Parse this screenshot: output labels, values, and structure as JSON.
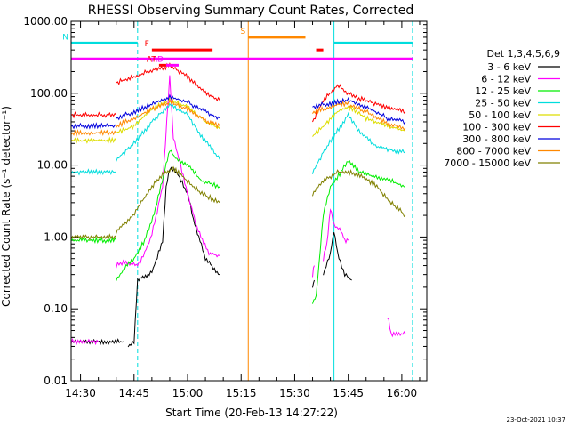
{
  "chart_data": {
    "type": "line",
    "title": "RHESSI Observing Summary Count Rates, Corrected",
    "xlabel": "Start Time (20-Feb-13 14:27:22)",
    "ylabel": "Corrected Count Rate (s⁻¹ detector⁻¹)",
    "ylog": true,
    "ylim": [
      0.01,
      1000
    ],
    "xlim": [
      "14:27:22",
      "16:07:00"
    ],
    "x_ticks": [
      "14:30",
      "14:45",
      "15:00",
      "15:15",
      "15:30",
      "15:45",
      "16:00"
    ],
    "y_ticks": [
      "0.01",
      "0.10",
      "1.00",
      "10.00",
      "100.00",
      "1000.00"
    ],
    "legend_title": "Det 1,3,4,5,6,9",
    "legend_position": "right",
    "footer": "23-Oct-2021 10:37",
    "series": [
      {
        "name": "3 - 6 keV",
        "color": "#000000",
        "segments": [
          [
            [
              "14:27:22",
              0.035
            ],
            [
              "14:42:00",
              0.035
            ]
          ],
          [
            [
              "14:43:20",
              0.03
            ],
            [
              "14:45:00",
              0.035
            ],
            [
              "14:46:00",
              0.25
            ],
            [
              "14:50:00",
              0.32
            ],
            [
              "14:53:00",
              0.9
            ],
            [
              "14:54:00",
              5
            ],
            [
              "14:55:00",
              9
            ],
            [
              "14:57:00",
              8
            ],
            [
              "15:00:00",
              4
            ],
            [
              "15:02:00",
              1.5
            ],
            [
              "15:05:00",
              0.5
            ],
            [
              "15:09:00",
              0.3
            ]
          ],
          [
            [
              "15:35:00",
              0.2
            ],
            [
              "15:35:30",
              0.25
            ]
          ],
          [
            [
              "15:38:00",
              0.3
            ],
            [
              "15:40:00",
              0.6
            ],
            [
              "15:41:00",
              1.2
            ],
            [
              "15:42:00",
              0.6
            ],
            [
              "15:44:00",
              0.3
            ],
            [
              "15:46:00",
              0.25
            ]
          ]
        ]
      },
      {
        "name": "6 - 12 keV",
        "color": "#ff00ff",
        "segments": [
          [
            [
              "14:27:22",
              0.035
            ],
            [
              "14:35:00",
              0.035
            ]
          ],
          [
            [
              "14:40:00",
              0.4
            ],
            [
              "14:42:00",
              0.45
            ],
            [
              "14:46:00",
              0.4
            ],
            [
              "14:48:00",
              0.6
            ],
            [
              "14:50:00",
              1.1
            ],
            [
              "14:53:00",
              5
            ],
            [
              "14:55:00",
              170
            ],
            [
              "14:56:00",
              25
            ],
            [
              "14:58:00",
              10
            ],
            [
              "15:00:00",
              4
            ],
            [
              "15:03:00",
              1.2
            ],
            [
              "15:06:00",
              0.6
            ],
            [
              "15:09:00",
              0.55
            ]
          ],
          [
            [
              "15:35:00",
              0.3
            ],
            [
              "15:35:30",
              0.4
            ]
          ],
          [
            [
              "15:38:00",
              0.5
            ],
            [
              "15:39:00",
              0.8
            ],
            [
              "15:40:00",
              2.5
            ],
            [
              "15:41:00",
              1.5
            ],
            [
              "15:43:00",
              1.2
            ],
            [
              "15:44:00",
              0.9
            ],
            [
              "15:45:00",
              0.9
            ]
          ],
          [
            [
              "15:56:00",
              0.08
            ],
            [
              "15:57:00",
              0.045
            ],
            [
              "16:01:00",
              0.045
            ]
          ]
        ]
      },
      {
        "name": "12 - 25 keV",
        "color": "#00ee00",
        "segments": [
          [
            [
              "14:27:22",
              0.9
            ],
            [
              "14:40:00",
              0.9
            ]
          ],
          [
            [
              "14:40:00",
              0.25
            ],
            [
              "14:42:00",
              0.35
            ],
            [
              "14:45:00",
              0.5
            ],
            [
              "14:48:00",
              0.9
            ],
            [
              "14:51:00",
              2.5
            ],
            [
              "14:54:00",
              10
            ],
            [
              "14:55:00",
              16
            ],
            [
              "14:57:00",
              12
            ],
            [
              "15:00:00",
              10
            ],
            [
              "15:04:00",
              6
            ],
            [
              "15:09:00",
              5
            ]
          ],
          [
            [
              "15:35:00",
              0.12
            ],
            [
              "15:36:00",
              0.15
            ],
            [
              "15:38:00",
              2
            ],
            [
              "15:40:00",
              5
            ],
            [
              "15:43:00",
              8
            ],
            [
              "15:45:00",
              12
            ],
            [
              "15:48:00",
              8
            ],
            [
              "15:52:00",
              7
            ],
            [
              "15:57:00",
              6
            ],
            [
              "16:01:00",
              5
            ]
          ]
        ]
      },
      {
        "name": "25 - 50 keV",
        "color": "#00dddd",
        "segments": [
          [
            [
              "14:27:22",
              8
            ],
            [
              "14:40:00",
              8
            ]
          ],
          [
            [
              "14:40:00",
              12
            ],
            [
              "14:45:00",
              20
            ],
            [
              "14:50:00",
              40
            ],
            [
              "14:55:00",
              70
            ],
            [
              "15:00:00",
              50
            ],
            [
              "15:04:00",
              25
            ],
            [
              "15:09:00",
              12
            ]
          ],
          [
            [
              "15:35:00",
              8
            ],
            [
              "15:38:00",
              15
            ],
            [
              "15:42:00",
              30
            ],
            [
              "15:45:00",
              50
            ],
            [
              "15:48:00",
              30
            ],
            [
              "15:53:00",
              18
            ],
            [
              "16:01:00",
              15
            ]
          ]
        ]
      },
      {
        "name": "50 - 100 keV",
        "color": "#dddd00",
        "segments": [
          [
            [
              "14:27:22",
              22
            ],
            [
              "14:40:00",
              22
            ]
          ],
          [
            [
              "14:40:00",
              28
            ],
            [
              "14:45:00",
              35
            ],
            [
              "14:50:00",
              60
            ],
            [
              "14:55:00",
              80
            ],
            [
              "15:00:00",
              65
            ],
            [
              "15:05:00",
              40
            ],
            [
              "15:09:00",
              32
            ]
          ],
          [
            [
              "15:35:00",
              25
            ],
            [
              "15:38:00",
              35
            ],
            [
              "15:42:00",
              55
            ],
            [
              "15:45:00",
              65
            ],
            [
              "15:50:00",
              45
            ],
            [
              "15:56:00",
              35
            ],
            [
              "16:01:00",
              30
            ]
          ]
        ]
      },
      {
        "name": "100 - 300 keV",
        "color": "#ff0000",
        "segments": [
          [
            [
              "14:27:22",
              50
            ],
            [
              "14:40:00",
              50
            ]
          ],
          [
            [
              "14:40:00",
              140
            ],
            [
              "14:45:00",
              170
            ],
            [
              "14:50:00",
              210
            ],
            [
              "14:55:00",
              240
            ],
            [
              "15:00:00",
              170
            ],
            [
              "15:05:00",
              100
            ],
            [
              "15:09:00",
              80
            ]
          ],
          [
            [
              "15:35:00",
              40
            ],
            [
              "15:38:00",
              80
            ],
            [
              "15:42:00",
              130
            ],
            [
              "15:45:00",
              100
            ],
            [
              "15:48:00",
              85
            ],
            [
              "15:53:00",
              70
            ],
            [
              "16:01:00",
              55
            ]
          ]
        ]
      },
      {
        "name": "300 - 800 keV",
        "color": "#0000dd",
        "segments": [
          [
            [
              "14:27:22",
              35
            ],
            [
              "14:40:00",
              35
            ]
          ],
          [
            [
              "14:40:00",
              45
            ],
            [
              "14:45:00",
              55
            ],
            [
              "14:50:00",
              70
            ],
            [
              "14:55:00",
              90
            ],
            [
              "15:00:00",
              75
            ],
            [
              "15:05:00",
              55
            ],
            [
              "15:09:00",
              45
            ]
          ],
          [
            [
              "15:35:00",
              65
            ],
            [
              "15:38:00",
              70
            ],
            [
              "15:42:00",
              75
            ],
            [
              "15:45:00",
              80
            ],
            [
              "15:50:00",
              65
            ],
            [
              "15:56:00",
              45
            ],
            [
              "16:01:00",
              40
            ]
          ]
        ]
      },
      {
        "name": "800 - 7000 keV",
        "color": "#ff8800",
        "segments": [
          [
            [
              "14:27:22",
              28
            ],
            [
              "14:40:00",
              28
            ]
          ],
          [
            [
              "14:40:00",
              35
            ],
            [
              "14:45:00",
              45
            ],
            [
              "14:50:00",
              60
            ],
            [
              "14:55:00",
              75
            ],
            [
              "15:00:00",
              60
            ],
            [
              "15:05:00",
              42
            ],
            [
              "15:09:00",
              35
            ]
          ],
          [
            [
              "15:35:00",
              55
            ],
            [
              "15:38:00",
              60
            ],
            [
              "15:42:00",
              70
            ],
            [
              "15:45:00",
              70
            ],
            [
              "15:50:00",
              55
            ],
            [
              "15:56:00",
              38
            ],
            [
              "16:01:00",
              33
            ]
          ]
        ]
      },
      {
        "name": "7000 - 15000 keV",
        "color": "#808000",
        "segments": [
          [
            [
              "14:27:22",
              1.0
            ],
            [
              "14:40:00",
              1.0
            ]
          ],
          [
            [
              "14:40:00",
              1.2
            ],
            [
              "14:44:00",
              1.8
            ],
            [
              "14:47:00",
              3
            ],
            [
              "14:50:00",
              5
            ],
            [
              "14:53:00",
              7.5
            ],
            [
              "14:56:00",
              9
            ],
            [
              "15:00:00",
              6
            ],
            [
              "15:04:00",
              4
            ],
            [
              "15:09:00",
              3
            ]
          ],
          [
            [
              "15:35:00",
              4
            ],
            [
              "15:38:00",
              6
            ],
            [
              "15:42:00",
              8
            ],
            [
              "15:45:00",
              8
            ],
            [
              "15:49:00",
              7
            ],
            [
              "15:53:00",
              5
            ],
            [
              "15:57:00",
              3
            ],
            [
              "16:01:00",
              2
            ]
          ]
        ]
      }
    ],
    "vertical_lines": [
      {
        "time": "14:27:22",
        "color": "#00dddd",
        "style": "dashed"
      },
      {
        "time": "14:46:00",
        "color": "#00dddd",
        "style": "dashed"
      },
      {
        "time": "15:17:00",
        "color": "#ff8800",
        "style": "solid"
      },
      {
        "time": "15:34:00",
        "color": "#ff8800",
        "style": "dashed"
      },
      {
        "time": "15:41:00",
        "color": "#00dddd",
        "style": "solid"
      },
      {
        "time": "16:03:00",
        "color": "#00dddd",
        "style": "dashed"
      }
    ],
    "flag_bars": [
      {
        "label": "N",
        "color": "#00dddd",
        "y": 500,
        "spans": [
          [
            "14:27:22",
            "14:46:00"
          ],
          [
            "15:41:00",
            "16:03:00"
          ]
        ]
      },
      {
        "label": "F",
        "color": "#ff0000",
        "y": 400,
        "spans": [
          [
            "14:50:00",
            "15:07:00"
          ],
          [
            "15:36:00",
            "15:38:00"
          ]
        ]
      },
      {
        "label": "S",
        "color": "#ff8800",
        "y": 600,
        "spans": [
          [
            "15:17:00",
            "15:33:00"
          ]
        ]
      },
      {
        "label": "",
        "color": "#ff00ff",
        "y": 300,
        "spans": [
          [
            "14:27:22",
            "16:03:00"
          ]
        ]
      },
      {
        "label": "AD",
        "color": "#ff00ff",
        "y": 245,
        "spans": [
          [
            "14:54:00",
            "14:57:30"
          ]
        ]
      },
      {
        "label": "AT",
        "color": "#ff0000",
        "y": 245,
        "spans": [
          [
            "14:52:00",
            "14:54:00"
          ]
        ]
      }
    ]
  }
}
